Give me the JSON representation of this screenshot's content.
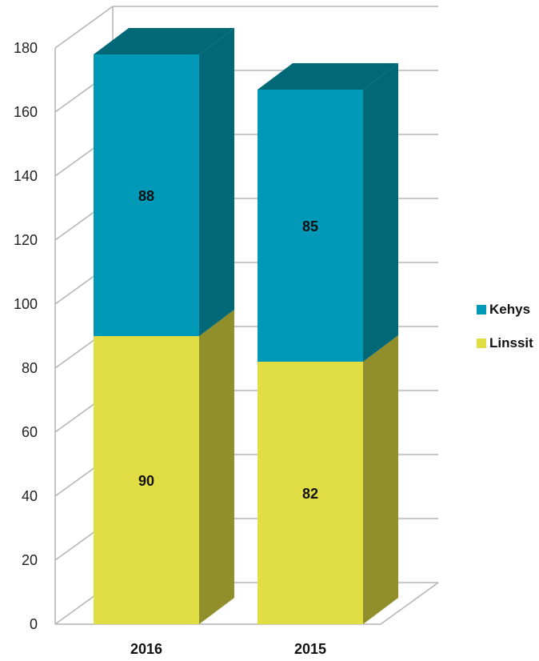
{
  "chart_data": {
    "type": "bar",
    "stacked": true,
    "three_d": true,
    "categories": [
      "2016",
      "2015"
    ],
    "series": [
      {
        "name": "Linssit",
        "values": [
          90,
          82
        ],
        "color": "#e1dd45",
        "side_color": "#918f2b"
      },
      {
        "name": "Kehys",
        "values": [
          88,
          85
        ],
        "color": "#0199b8",
        "side_color": "#016878"
      }
    ],
    "ylim": [
      0,
      180
    ],
    "yticks": [
      "0",
      "20",
      "40",
      "60",
      "80",
      "100",
      "120",
      "140",
      "160",
      "180"
    ],
    "grid": true,
    "grid_color": "#b3b3b3",
    "legend_position": "right",
    "title": "",
    "xlabel": "",
    "ylabel": ""
  }
}
